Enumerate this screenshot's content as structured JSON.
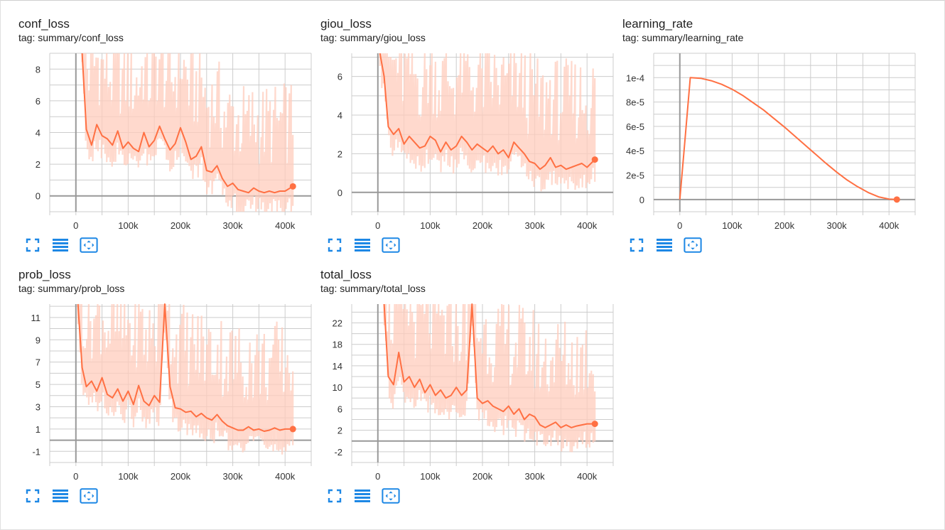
{
  "colors": {
    "accent": "#ff7043",
    "band": "#ffccbc",
    "grid": "#cccccc",
    "axis": "#999999",
    "button": "#1e88e5"
  },
  "icons": {
    "fullscreen": "fullscreen-icon",
    "list": "list-icon",
    "fit": "fit-domain-icon"
  },
  "x_ticks": [
    "0",
    "100k",
    "200k",
    "300k",
    "400k"
  ],
  "chart_data": [
    {
      "type": "line",
      "title": "conf_loss",
      "tag": "tag: summary/conf_loss",
      "yticks": [
        "0",
        "2",
        "4",
        "6",
        "8"
      ],
      "xticks": [
        "0",
        "100k",
        "200k",
        "300k",
        "400k"
      ],
      "xlim": [
        -50000,
        450000
      ],
      "ylim": [
        -1,
        9
      ],
      "x": [
        12000,
        20000,
        30000,
        40000,
        50000,
        60000,
        70000,
        80000,
        90000,
        100000,
        110000,
        120000,
        130000,
        140000,
        150000,
        160000,
        170000,
        180000,
        190000,
        200000,
        210000,
        220000,
        230000,
        240000,
        250000,
        260000,
        270000,
        280000,
        290000,
        300000,
        310000,
        320000,
        330000,
        340000,
        350000,
        360000,
        370000,
        380000,
        390000,
        400000,
        415000
      ],
      "series": [
        {
          "values": [
            9.0,
            4.2,
            3.2,
            4.5,
            3.8,
            3.6,
            3.2,
            4.1,
            3.0,
            3.4,
            3.0,
            2.8,
            4.0,
            3.1,
            3.5,
            4.4,
            3.6,
            2.9,
            3.3,
            4.3,
            3.4,
            2.3,
            2.5,
            3.1,
            1.6,
            1.5,
            1.9,
            1.1,
            0.6,
            0.8,
            0.4,
            0.3,
            0.2,
            0.5,
            0.3,
            0.2,
            0.3,
            0.2,
            0.3,
            0.3,
            0.6
          ]
        }
      ]
    },
    {
      "type": "line",
      "title": "giou_loss",
      "tag": "tag: summary/giou_loss",
      "yticks": [
        "0",
        "2",
        "4",
        "6"
      ],
      "xticks": [
        "0",
        "100k",
        "200k",
        "300k",
        "400k"
      ],
      "xlim": [
        -50000,
        450000
      ],
      "ylim": [
        -1,
        7.2
      ],
      "x": [
        4000,
        12000,
        20000,
        30000,
        40000,
        50000,
        60000,
        70000,
        80000,
        90000,
        100000,
        110000,
        120000,
        130000,
        140000,
        150000,
        160000,
        170000,
        180000,
        190000,
        200000,
        210000,
        220000,
        230000,
        240000,
        250000,
        260000,
        270000,
        280000,
        290000,
        300000,
        310000,
        320000,
        330000,
        340000,
        350000,
        360000,
        370000,
        380000,
        390000,
        400000,
        415000
      ],
      "series": [
        {
          "values": [
            7.2,
            6.0,
            3.4,
            3.0,
            3.3,
            2.5,
            2.9,
            2.6,
            2.3,
            2.4,
            2.9,
            2.7,
            2.1,
            2.6,
            2.2,
            2.4,
            2.9,
            2.6,
            2.2,
            2.5,
            2.3,
            2.1,
            2.4,
            2.0,
            2.2,
            1.8,
            2.6,
            2.3,
            2.0,
            1.6,
            1.5,
            1.2,
            1.4,
            1.8,
            1.3,
            1.4,
            1.2,
            1.3,
            1.4,
            1.5,
            1.3,
            1.7
          ]
        }
      ]
    },
    {
      "type": "line",
      "title": "learning_rate",
      "tag": "tag: summary/learning_rate",
      "yticks": [
        "0",
        "2e-5",
        "4e-5",
        "6e-5",
        "8e-5",
        "1e-4"
      ],
      "xticks": [
        "0",
        "100k",
        "200k",
        "300k",
        "400k"
      ],
      "xlim": [
        -50000,
        450000
      ],
      "ylim": [
        -1e-05,
        0.00012
      ],
      "x": [
        0,
        10000,
        20000,
        40000,
        60000,
        80000,
        100000,
        120000,
        140000,
        160000,
        180000,
        200000,
        220000,
        240000,
        260000,
        280000,
        300000,
        320000,
        340000,
        360000,
        380000,
        400000,
        415000
      ],
      "series": [
        {
          "values": [
            0,
            5e-05,
            0.0001,
            9.95e-05,
            9.75e-05,
            9.45e-05,
            9.05e-05,
            8.55e-05,
            7.95e-05,
            7.35e-05,
            6.65e-05,
            5.95e-05,
            5.2e-05,
            4.45e-05,
            3.7e-05,
            2.95e-05,
            2.25e-05,
            1.6e-05,
            1.05e-05,
            5.8e-06,
            2.2e-06,
            4e-07,
            0
          ]
        }
      ]
    },
    {
      "type": "line",
      "title": "prob_loss",
      "tag": "tag: summary/prob_loss",
      "yticks": [
        "-1",
        "1",
        "3",
        "5",
        "7",
        "9",
        "11"
      ],
      "xticks": [
        "0",
        "100k",
        "200k",
        "300k",
        "400k"
      ],
      "xlim": [
        -50000,
        450000
      ],
      "ylim": [
        -2,
        12.2
      ],
      "x": [
        4000,
        12000,
        20000,
        30000,
        40000,
        50000,
        60000,
        70000,
        80000,
        90000,
        100000,
        110000,
        120000,
        130000,
        140000,
        150000,
        160000,
        170000,
        180000,
        190000,
        200000,
        210000,
        220000,
        230000,
        240000,
        250000,
        260000,
        270000,
        280000,
        290000,
        300000,
        310000,
        320000,
        330000,
        340000,
        350000,
        360000,
        370000,
        380000,
        390000,
        400000,
        415000
      ],
      "series": [
        {
          "values": [
            12.2,
            6.5,
            4.8,
            5.3,
            4.4,
            5.6,
            4.1,
            3.8,
            4.6,
            3.5,
            4.4,
            3.2,
            4.9,
            3.5,
            3.1,
            4.0,
            3.4,
            12.2,
            4.8,
            2.9,
            2.8,
            2.5,
            2.6,
            2.1,
            2.4,
            2.0,
            1.8,
            2.3,
            1.7,
            1.3,
            1.1,
            0.9,
            0.9,
            1.2,
            0.9,
            1.0,
            0.8,
            0.9,
            1.1,
            0.9,
            1.0,
            1.0
          ]
        }
      ]
    },
    {
      "type": "line",
      "title": "total_loss",
      "tag": "tag: summary/total_loss",
      "yticks": [
        "-2",
        "2",
        "6",
        "10",
        "14",
        "18",
        "22"
      ],
      "xticks": [
        "0",
        "100k",
        "200k",
        "300k",
        "400k"
      ],
      "xlim": [
        -50000,
        450000
      ],
      "ylim": [
        -4,
        25.5
      ],
      "x": [
        12000,
        20000,
        30000,
        40000,
        50000,
        60000,
        70000,
        80000,
        90000,
        100000,
        110000,
        120000,
        130000,
        140000,
        150000,
        160000,
        170000,
        180000,
        190000,
        200000,
        210000,
        220000,
        230000,
        240000,
        250000,
        260000,
        270000,
        280000,
        290000,
        300000,
        310000,
        320000,
        330000,
        340000,
        350000,
        360000,
        370000,
        380000,
        390000,
        400000,
        415000
      ],
      "series": [
        {
          "values": [
            25.5,
            12.0,
            10.5,
            16.5,
            11.0,
            12.0,
            10.0,
            11.5,
            9.0,
            10.5,
            8.5,
            9.5,
            8.0,
            8.5,
            10.0,
            8.5,
            9.5,
            25.5,
            8.0,
            7.0,
            7.5,
            6.5,
            6.0,
            5.5,
            6.5,
            5.0,
            6.0,
            4.0,
            5.0,
            4.5,
            3.0,
            2.5,
            3.0,
            3.5,
            2.5,
            3.0,
            2.5,
            2.8,
            3.0,
            3.2,
            3.2
          ]
        }
      ]
    }
  ]
}
